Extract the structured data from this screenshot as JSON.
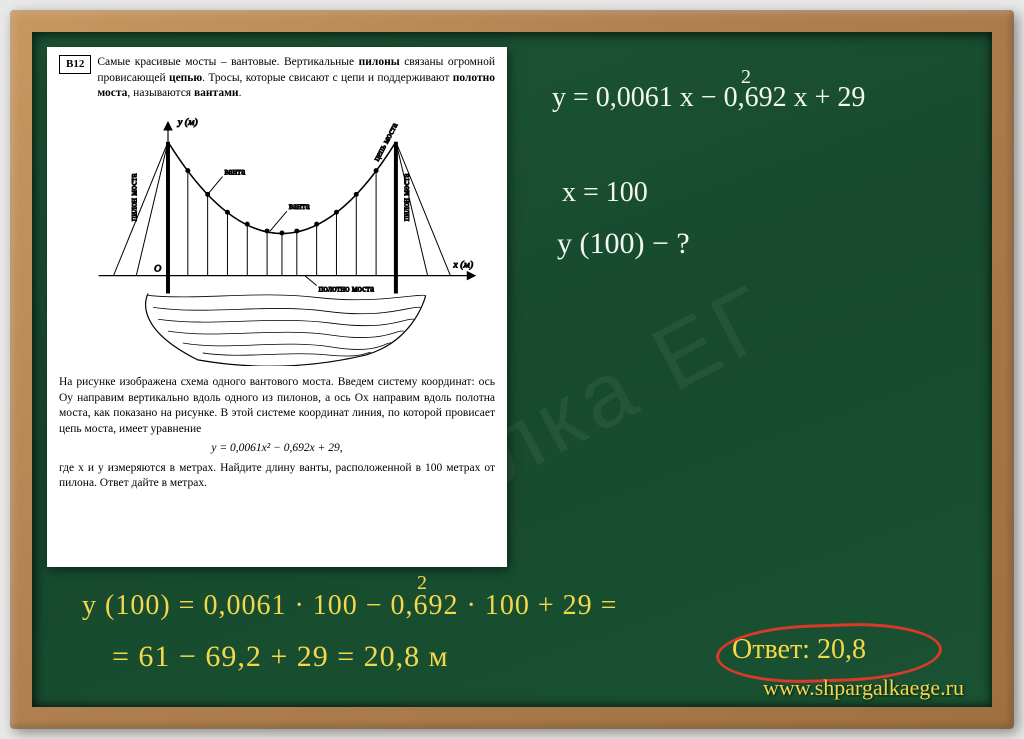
{
  "problem": {
    "badge": "В12",
    "intro_html": "Самые красивые мосты – вантовые. Вертикальные <b>пилоны</b> связаны огромной провисающей <b>цепью</b>. Тросы, которые свисают с цепи и поддерживают <b>полотно моста</b>, называются <b>вантами</b>.",
    "diagram": {
      "y_label": "y (м)",
      "x_label": "x (м)",
      "origin_label": "О",
      "annotations": {
        "pylon_left": "пилон моста",
        "pylon_right": "пилон моста",
        "vanta1": "ванта",
        "vanta2": "ванта",
        "chain": "цепь моста",
        "deck": "полотно моста"
      },
      "stroke_color": "#000000",
      "background": "#ffffff"
    },
    "body_text": "На рисунке изображена схема одного вантового моста. Введем систему координат: ось Oy направим вертикально вдоль одного из пилонов, а ось Ox направим вдоль полотна моста, как показано на рисунке. В этой системе координат линия, по которой провисает цепь моста, имеет уравнение",
    "equation": "y = 0,0061x² − 0,692x + 29,",
    "tail_text": "где x и y измеряются в метрах. Найдите длину ванты, расположенной в 100 метрах от пилона. Ответ дайте в метрах."
  },
  "handwriting": {
    "eq_line": "y = 0,0061 x  − 0,692 x + 29",
    "eq_sup": "2",
    "x_val": "x = 100",
    "y_q": "y (100) − ?",
    "calc1_a": "y (100) = 0,0061 · 100  − 0,692 · 100 + 29 =",
    "calc1_sup": "2",
    "calc2": "= 61 − 69,2 + 29 = 20,8 м",
    "answer": "Ответ: 20,8"
  },
  "watermark_text": "лка ЕГ",
  "url": "www.shpargalkaege.ru",
  "colors": {
    "board": "#1a5232",
    "frame": "#b08050",
    "chalk_white": "#f4f6f3",
    "chalk_yellow": "#f3d94a",
    "answer_ring": "#d83a2a"
  }
}
